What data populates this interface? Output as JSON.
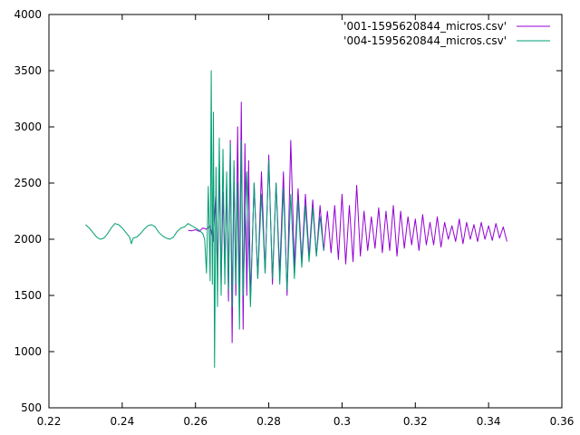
{
  "chart_data": {
    "type": "line",
    "xlim": [
      0.22,
      0.36
    ],
    "ylim": [
      500,
      4000
    ],
    "xticks": [
      "0.22",
      "0.24",
      "0.26",
      "0.28",
      "0.3",
      "0.32",
      "0.34",
      "0.36"
    ],
    "yticks": [
      "500",
      "1000",
      "1500",
      "2000",
      "2500",
      "3000",
      "3500",
      "4000"
    ],
    "grid": false,
    "legend_position": "top-right",
    "series": [
      {
        "name": "'001-1595620844_micros.csv'",
        "color": "#9400d3",
        "points": [
          [
            0.258,
            2080
          ],
          [
            0.259,
            2075
          ],
          [
            0.26,
            2085
          ],
          [
            0.261,
            2070
          ],
          [
            0.262,
            2100
          ],
          [
            0.263,
            2090
          ],
          [
            0.264,
            2120
          ],
          [
            0.2648,
            1980
          ],
          [
            0.2655,
            2380
          ],
          [
            0.266,
            1700
          ],
          [
            0.2665,
            2650
          ],
          [
            0.267,
            1600
          ],
          [
            0.2675,
            2420
          ],
          [
            0.268,
            1750
          ],
          [
            0.2685,
            2500
          ],
          [
            0.269,
            1450
          ],
          [
            0.2695,
            2880
          ],
          [
            0.27,
            1080
          ],
          [
            0.2705,
            2640
          ],
          [
            0.271,
            1500
          ],
          [
            0.2715,
            3000
          ],
          [
            0.272,
            1450
          ],
          [
            0.2725,
            3220
          ],
          [
            0.273,
            1200
          ],
          [
            0.2735,
            2850
          ],
          [
            0.274,
            1500
          ],
          [
            0.2745,
            2700
          ],
          [
            0.275,
            1450
          ],
          [
            0.276,
            2500
          ],
          [
            0.277,
            1650
          ],
          [
            0.278,
            2600
          ],
          [
            0.279,
            1700
          ],
          [
            0.28,
            2750
          ],
          [
            0.281,
            1600
          ],
          [
            0.282,
            2500
          ],
          [
            0.283,
            1700
          ],
          [
            0.284,
            2600
          ],
          [
            0.285,
            1500
          ],
          [
            0.286,
            2880
          ],
          [
            0.287,
            1750
          ],
          [
            0.288,
            2450
          ],
          [
            0.289,
            1800
          ],
          [
            0.29,
            2400
          ],
          [
            0.291,
            1850
          ],
          [
            0.292,
            2350
          ],
          [
            0.293,
            1850
          ],
          [
            0.294,
            2300
          ],
          [
            0.295,
            1900
          ],
          [
            0.296,
            2250
          ],
          [
            0.297,
            1880
          ],
          [
            0.298,
            2300
          ],
          [
            0.299,
            1820
          ],
          [
            0.3,
            2400
          ],
          [
            0.301,
            1780
          ],
          [
            0.302,
            2300
          ],
          [
            0.303,
            1800
          ],
          [
            0.304,
            2480
          ],
          [
            0.305,
            1850
          ],
          [
            0.306,
            2250
          ],
          [
            0.307,
            1900
          ],
          [
            0.308,
            2200
          ],
          [
            0.309,
            1920
          ],
          [
            0.31,
            2280
          ],
          [
            0.311,
            1880
          ],
          [
            0.312,
            2250
          ],
          [
            0.313,
            1900
          ],
          [
            0.314,
            2300
          ],
          [
            0.315,
            1850
          ],
          [
            0.316,
            2250
          ],
          [
            0.317,
            1920
          ],
          [
            0.318,
            2200
          ],
          [
            0.319,
            1950
          ],
          [
            0.32,
            2180
          ],
          [
            0.321,
            1900
          ],
          [
            0.322,
            2220
          ],
          [
            0.323,
            1950
          ],
          [
            0.324,
            2150
          ],
          [
            0.325,
            1950
          ],
          [
            0.326,
            2200
          ],
          [
            0.327,
            1930
          ],
          [
            0.328,
            2150
          ],
          [
            0.329,
            2000
          ],
          [
            0.33,
            2120
          ],
          [
            0.331,
            1980
          ],
          [
            0.332,
            2180
          ],
          [
            0.333,
            1960
          ],
          [
            0.334,
            2150
          ],
          [
            0.335,
            2000
          ],
          [
            0.336,
            2130
          ],
          [
            0.337,
            1980
          ],
          [
            0.338,
            2150
          ],
          [
            0.339,
            2000
          ],
          [
            0.34,
            2120
          ],
          [
            0.341,
            1990
          ],
          [
            0.342,
            2140
          ],
          [
            0.343,
            2010
          ],
          [
            0.344,
            2110
          ],
          [
            0.345,
            1980
          ]
        ]
      },
      {
        "name": "'004-1595620844_micros.csv'",
        "color": "#009e73",
        "points": [
          [
            0.23,
            2130
          ],
          [
            0.231,
            2100
          ],
          [
            0.232,
            2060
          ],
          [
            0.233,
            2020
          ],
          [
            0.234,
            2000
          ],
          [
            0.235,
            2010
          ],
          [
            0.236,
            2050
          ],
          [
            0.237,
            2100
          ],
          [
            0.238,
            2140
          ],
          [
            0.239,
            2130
          ],
          [
            0.24,
            2100
          ],
          [
            0.241,
            2060
          ],
          [
            0.242,
            2020
          ],
          [
            0.2425,
            1960
          ],
          [
            0.243,
            2010
          ],
          [
            0.244,
            2020
          ],
          [
            0.245,
            2050
          ],
          [
            0.246,
            2090
          ],
          [
            0.247,
            2120
          ],
          [
            0.248,
            2130
          ],
          [
            0.249,
            2110
          ],
          [
            0.25,
            2060
          ],
          [
            0.251,
            2030
          ],
          [
            0.252,
            2010
          ],
          [
            0.253,
            2000
          ],
          [
            0.254,
            2020
          ],
          [
            0.255,
            2070
          ],
          [
            0.256,
            2100
          ],
          [
            0.257,
            2110
          ],
          [
            0.258,
            2140
          ],
          [
            0.259,
            2120
          ],
          [
            0.26,
            2100
          ],
          [
            0.261,
            2080
          ],
          [
            0.262,
            2050
          ],
          [
            0.2625,
            2000
          ],
          [
            0.263,
            1700
          ],
          [
            0.2635,
            2470
          ],
          [
            0.264,
            1630
          ],
          [
            0.2643,
            3500
          ],
          [
            0.2646,
            1600
          ],
          [
            0.2649,
            3130
          ],
          [
            0.2652,
            860
          ],
          [
            0.2656,
            2640
          ],
          [
            0.266,
            1400
          ],
          [
            0.2665,
            2900
          ],
          [
            0.267,
            1500
          ],
          [
            0.2675,
            2800
          ],
          [
            0.268,
            1600
          ],
          [
            0.2685,
            2600
          ],
          [
            0.269,
            1550
          ],
          [
            0.2695,
            2850
          ],
          [
            0.27,
            1400
          ],
          [
            0.2705,
            2700
          ],
          [
            0.271,
            1600
          ],
          [
            0.2715,
            2500
          ],
          [
            0.272,
            1200
          ],
          [
            0.2725,
            2880
          ],
          [
            0.273,
            1500
          ],
          [
            0.274,
            2600
          ],
          [
            0.275,
            1400
          ],
          [
            0.276,
            2500
          ],
          [
            0.277,
            1650
          ],
          [
            0.278,
            2400
          ],
          [
            0.279,
            1700
          ],
          [
            0.28,
            2700
          ],
          [
            0.281,
            1650
          ],
          [
            0.282,
            2500
          ],
          [
            0.283,
            1600
          ],
          [
            0.284,
            2450
          ],
          [
            0.285,
            1550
          ],
          [
            0.286,
            2400
          ],
          [
            0.287,
            1650
          ],
          [
            0.288,
            2350
          ],
          [
            0.289,
            1750
          ],
          [
            0.29,
            2300
          ],
          [
            0.291,
            1800
          ],
          [
            0.292,
            2280
          ],
          [
            0.293,
            1850
          ],
          [
            0.294,
            2200
          ],
          [
            0.295,
            1900
          ]
        ]
      }
    ]
  }
}
